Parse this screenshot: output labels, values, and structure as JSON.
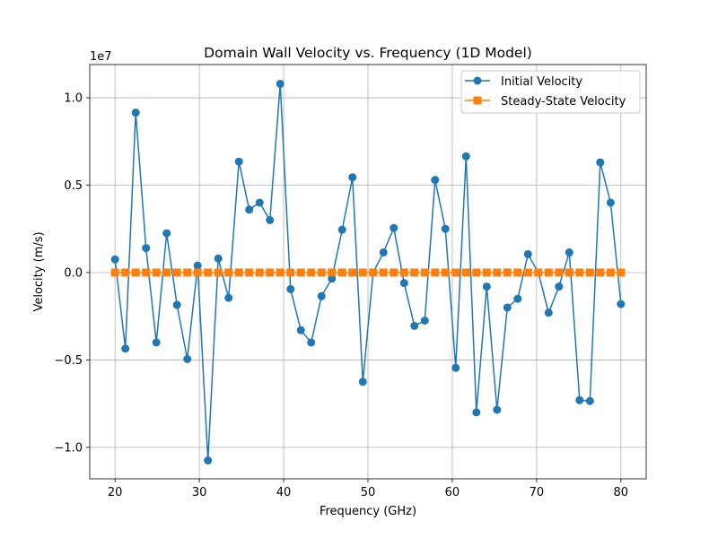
{
  "chart_data": {
    "type": "line",
    "title": "Domain Wall Velocity vs. Frequency (1D Model)",
    "xlabel": "Frequency (GHz)",
    "ylabel": "Velocity (m/s)",
    "y_offset_label": "1e7",
    "y_scale": 10000000,
    "xlim": [
      17.0,
      83.0
    ],
    "ylim": [
      -11800000,
      11900000
    ],
    "x_ticks": [
      20,
      30,
      40,
      50,
      60,
      70,
      80
    ],
    "y_ticks": [
      -1.0,
      -0.5,
      0.0,
      0.5,
      1.0
    ],
    "x_tick_labels": [
      "20",
      "30",
      "40",
      "50",
      "60",
      "70",
      "80"
    ],
    "y_tick_labels": [
      "−1.0",
      "−0.5",
      "0.0",
      "0.5",
      "1.0"
    ],
    "grid": true,
    "legend_position": "top-right",
    "x": [
      20.0,
      21.224,
      22.449,
      23.673,
      24.898,
      26.122,
      27.347,
      28.571,
      29.796,
      31.02,
      32.245,
      33.469,
      34.694,
      35.918,
      37.143,
      38.367,
      39.592,
      40.816,
      42.041,
      43.265,
      44.49,
      45.714,
      46.939,
      48.163,
      49.388,
      50.612,
      51.837,
      53.061,
      54.286,
      55.51,
      56.735,
      57.959,
      59.184,
      60.408,
      61.633,
      62.857,
      64.082,
      65.306,
      66.531,
      67.755,
      68.98,
      70.204,
      71.429,
      72.653,
      73.878,
      75.102,
      76.327,
      77.551,
      78.776,
      80.0
    ],
    "series": [
      {
        "name": "Initial Velocity",
        "color": "#1f77b4",
        "marker": "circle",
        "values": [
          750000,
          -4350000,
          9150000,
          1400000,
          -4000000,
          2250000,
          -1850000,
          -4950000,
          400000,
          -10750000,
          800000,
          -1450000,
          6350000,
          3600000,
          4000000,
          3000000,
          10800000,
          -950000,
          -3300000,
          -4000000,
          -1350000,
          -350000,
          2450000,
          5450000,
          -6250000,
          0,
          1150000,
          2550000,
          -600000,
          -3050000,
          -2750000,
          5300000,
          2500000,
          -5450000,
          6650000,
          -8000000,
          -800000,
          -7850000,
          -2000000,
          -1500000,
          1050000,
          0,
          -2300000,
          -800000,
          1150000,
          -7300000,
          -7350000,
          6300000,
          4000000,
          -1800000
        ]
      },
      {
        "name": "Steady-State Velocity",
        "color": "#ff7f0e",
        "marker": "square",
        "values": [
          0,
          0,
          0,
          0,
          0,
          0,
          0,
          0,
          0,
          0,
          0,
          0,
          0,
          0,
          0,
          0,
          0,
          0,
          0,
          0,
          0,
          0,
          0,
          0,
          0,
          0,
          0,
          0,
          0,
          0,
          0,
          0,
          0,
          0,
          0,
          0,
          0,
          0,
          0,
          0,
          0,
          0,
          0,
          0,
          0,
          0,
          0,
          0,
          0,
          0
        ]
      }
    ]
  }
}
